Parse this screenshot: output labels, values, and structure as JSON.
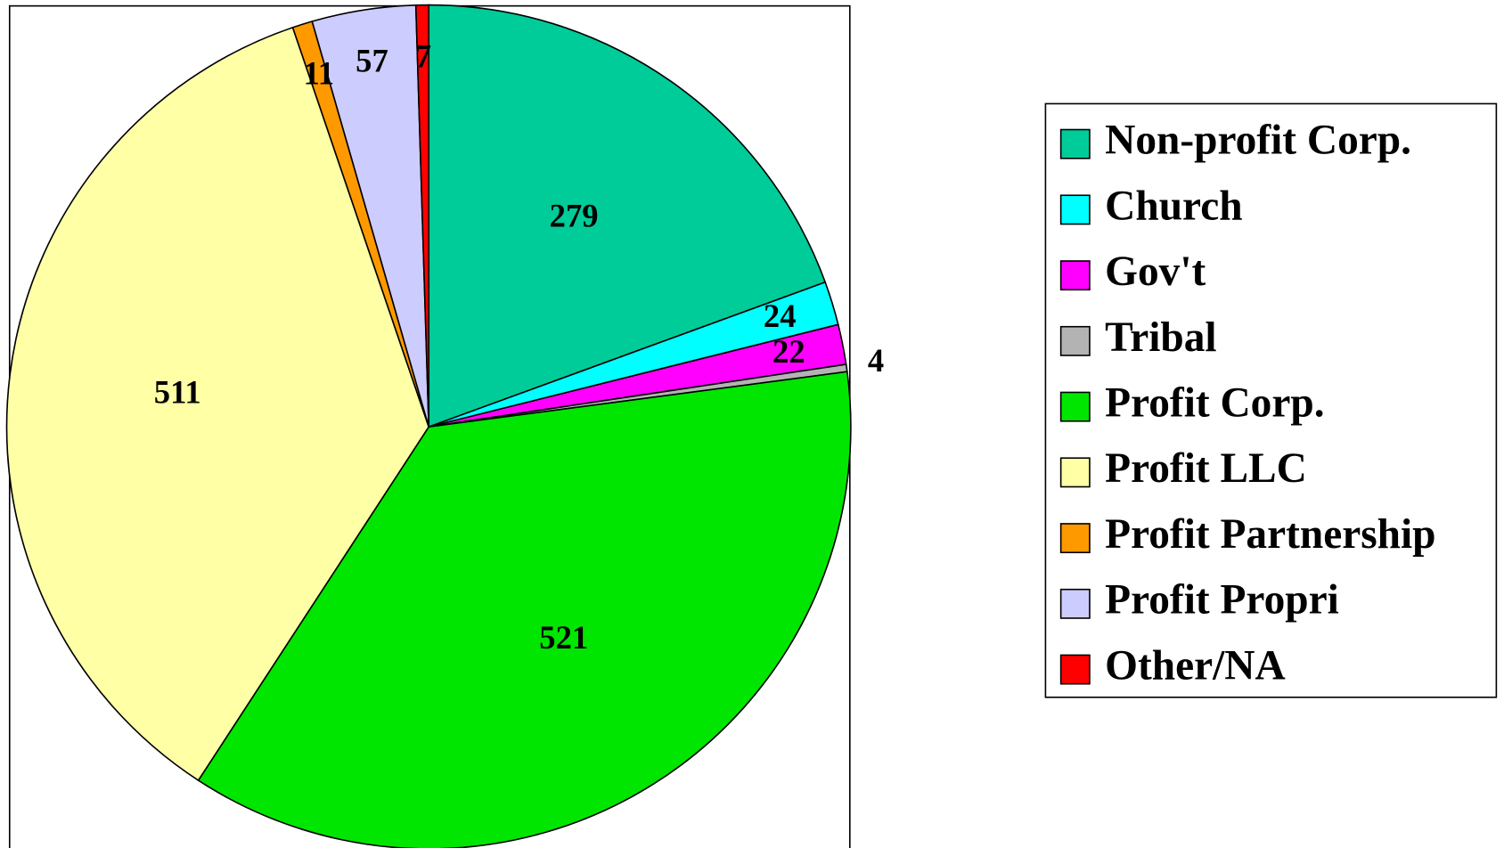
{
  "chart_data": {
    "type": "pie",
    "categories": [
      "Non-profit Corp.",
      "Church",
      "Gov't",
      "Tribal",
      "Profit Corp.",
      "Profit LLC",
      "Profit Partnership",
      "Profit Propri",
      "Other/NA"
    ],
    "values": [
      279,
      24,
      22,
      4,
      521,
      511,
      11,
      57,
      7
    ],
    "colors": [
      "#00cc99",
      "#00ffff",
      "#ff00ff",
      "#b3b3b3",
      "#00e600",
      "#ffffa6",
      "#ff9900",
      "#ccccff",
      "#ff0000"
    ],
    "legend": "right"
  }
}
